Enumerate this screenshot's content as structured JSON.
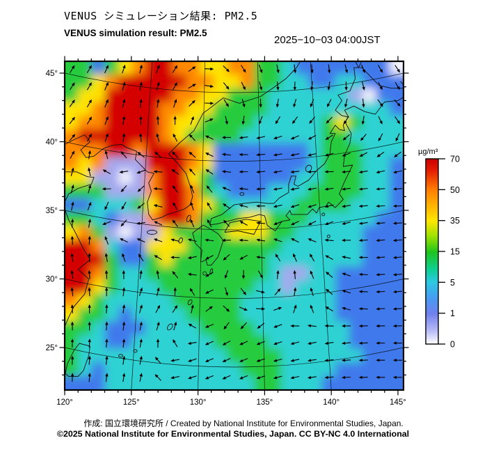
{
  "header": {
    "title_ja": "VENUS シミュレーション結果: PM2.5",
    "title_en": "VENUS simulation result: PM2.5",
    "timestamp": "2025−10−03 04:00JST"
  },
  "axes": {
    "lat_labels": [
      {
        "text": "45°",
        "value": 45
      },
      {
        "text": "40°",
        "value": 40
      },
      {
        "text": "35°",
        "value": 35
      },
      {
        "text": "30°",
        "value": 30
      },
      {
        "text": "25°",
        "value": 25
      }
    ],
    "lon_labels": [
      {
        "text": "120°",
        "value": 120
      },
      {
        "text": "125°",
        "value": 125
      },
      {
        "text": "130°",
        "value": 130
      },
      {
        "text": "135°",
        "value": 135
      },
      {
        "text": "140°",
        "value": 140
      },
      {
        "text": "145°",
        "value": 145
      }
    ]
  },
  "colorbar": {
    "unit": "µg/m³",
    "tick_values": [
      "70",
      "50",
      "35",
      "15",
      "5",
      "1",
      "0"
    ],
    "gradient": [
      [
        0,
        "#c80000"
      ],
      [
        0.06,
        "#e51a00"
      ],
      [
        0.17,
        "#ff8000"
      ],
      [
        0.335,
        "#ffe600"
      ],
      [
        0.42,
        "#9be100"
      ],
      [
        0.505,
        "#1ec41e"
      ],
      [
        0.6,
        "#0ecf96"
      ],
      [
        0.665,
        "#2cc9e2"
      ],
      [
        0.75,
        "#479df2"
      ],
      [
        0.835,
        "#6f80ee"
      ],
      [
        0.93,
        "#b9bcf6"
      ],
      [
        1,
        "#ffffff"
      ]
    ]
  },
  "map": {
    "heat_palette": {
      "R": "#d40000",
      "O": "#ff8a00",
      "Y": "#ffe400",
      "G": "#27cc3e",
      "C": "#2dd2d2",
      "B": "#4079ec",
      "P": "#a4a8ee",
      "W": "#f2f3fd"
    },
    "heat_rows": [
      "GGBGYORROOYYOOGGCBBBBBBBW",
      "GGYORRRRROOYYOGGCCBBCCBBB",
      "GYYRRRRROOYYGGGCCCCCCPWBB",
      "YYORRRROOYYGGGGCCCCCCCCCB",
      "YOORRRROYYGGGGCCCCCGYGCCC",
      "ORRRRRROYGGGGCCCCCCGGCCCC",
      "OOORRORRROYBBBBBBBCGGGCCC",
      "OYOPPPRRROYBBBBBBBCGGGCCB",
      "YYPPWPORRYGBBBBBBCCGGGCCB",
      "GGGPPPORROGCBBBCCCGGGGCCB",
      "BBCCCGYRROYGCCCCCGGGGCCCB",
      "GGCBPPORROGGGYYGGGCCCCCBB",
      "YOGPWPPYGGGGYYYGGCCCCCBBB",
      "RROCBBYYYGGGGGGGCCCCCCBBB",
      "RRRGBBGYGGGGGGGCCCCCCCBBB",
      "RROGCCGGGGGGGGGCPPCCBBBBB",
      "RRYGCCCGGGGGGGCCPCCCBBBBB",
      "OYGCCCCCGGGGGCCCCCCCBBBBB",
      "YGGCBCCCCGGGGCCCCCCCBBBBB",
      "GGCBBBCCCCGGGGCCCCCCCBBBB",
      "GCCBBCCCCCCGGGGCCCCCCBBBB",
      "GCCCCCCCCCCCGGGGCCCCCCBBB",
      "GCBCCCCCCCCCCGGGCCCCBBBBB",
      "BBBCCCCCCCCCCCGGCCCBBBBBB"
    ],
    "wind_field": {
      "lon_start": 120,
      "lon_step": 2,
      "lat_start": 46,
      "lat_step": -2,
      "angles": [
        [
          60,
          60,
          70,
          75,
          60,
          30,
          -40,
          -60,
          -75,
          -80,
          -75,
          -65,
          -55
        ],
        [
          55,
          60,
          70,
          80,
          65,
          20,
          -50,
          -70,
          -85,
          -95,
          -100,
          -80,
          -60
        ],
        [
          50,
          60,
          75,
          90,
          85,
          45,
          -60,
          -90,
          -110,
          -120,
          -130,
          -100,
          -40
        ],
        [
          45,
          60,
          80,
          100,
          120,
          150,
          170,
          180,
          190,
          200,
          210,
          220,
          235
        ],
        [
          60,
          110,
          180,
          200,
          150,
          130,
          175,
          185,
          190,
          185,
          180,
          190,
          195
        ],
        [
          80,
          60,
          250,
          230,
          120,
          100,
          150,
          180,
          190,
          195,
          190,
          185,
          180
        ],
        [
          90,
          80,
          240,
          180,
          130,
          110,
          130,
          160,
          200,
          210,
          200,
          190,
          185
        ],
        [
          100,
          90,
          110,
          140,
          190,
          200,
          215,
          185,
          135,
          110,
          160,
          180,
          185
        ],
        [
          100,
          95,
          90,
          70,
          110,
          180,
          255,
          290,
          75,
          100,
          140,
          175,
          185
        ],
        [
          95,
          90,
          85,
          70,
          50,
          80,
          320,
          350,
          20,
          90,
          150,
          175,
          185
        ],
        [
          90,
          88,
          85,
          80,
          75,
          200,
          210,
          205,
          200,
          195,
          190,
          185,
          180
        ],
        [
          88,
          85,
          82,
          78,
          190,
          200,
          205,
          200,
          195,
          190,
          185,
          182,
          180
        ]
      ]
    },
    "graticule": {
      "meridians": [
        125,
        130,
        135,
        140
      ],
      "parallels": [
        25,
        30,
        35,
        40,
        45
      ]
    },
    "coastlines": [
      [
        [
          141.0,
          41.5
        ],
        [
          141.5,
          40.6
        ],
        [
          141.4,
          39.9
        ],
        [
          141.0,
          39.0
        ],
        [
          140.9,
          38.2
        ],
        [
          141.6,
          38.3
        ],
        [
          141.0,
          37.1
        ],
        [
          140.6,
          36.2
        ],
        [
          140.9,
          35.8
        ],
        [
          140.3,
          35.2
        ],
        [
          139.8,
          35.6
        ],
        [
          139.6,
          35.3
        ],
        [
          139.1,
          35.2
        ],
        [
          138.9,
          34.8
        ],
        [
          138.6,
          35.1
        ],
        [
          138.2,
          34.7
        ],
        [
          137.0,
          34.7
        ],
        [
          136.9,
          35.0
        ],
        [
          136.6,
          34.6
        ],
        [
          136.9,
          34.3
        ],
        [
          136.3,
          34.2
        ],
        [
          135.8,
          33.5
        ],
        [
          135.2,
          33.9
        ],
        [
          135.0,
          34.6
        ],
        [
          134.6,
          34.7
        ],
        [
          133.9,
          34.5
        ],
        [
          133.0,
          34.4
        ],
        [
          132.2,
          34.2
        ],
        [
          131.4,
          34.0
        ],
        [
          130.9,
          33.95
        ],
        [
          131.0,
          34.4
        ],
        [
          131.8,
          34.7
        ],
        [
          132.7,
          35.4
        ],
        [
          133.4,
          35.5
        ],
        [
          134.4,
          35.6
        ],
        [
          135.2,
          35.5
        ],
        [
          135.7,
          35.5
        ],
        [
          136.1,
          35.9
        ],
        [
          136.8,
          36.3
        ],
        [
          136.8,
          36.9
        ],
        [
          137.0,
          37.5
        ],
        [
          137.35,
          37.5
        ],
        [
          137.2,
          36.9
        ],
        [
          137.5,
          36.75
        ],
        [
          138.3,
          37.2
        ],
        [
          138.9,
          37.9
        ],
        [
          139.5,
          38.4
        ],
        [
          139.9,
          39.1
        ],
        [
          140.0,
          40.0
        ],
        [
          140.3,
          40.6
        ],
        [
          139.9,
          40.6
        ],
        [
          140.3,
          41.2
        ],
        [
          140.6,
          40.9
        ],
        [
          141.0,
          40.8
        ],
        [
          140.9,
          41.2
        ],
        [
          141.0,
          41.5
        ]
      ],
      [
        [
          140.3,
          42.3
        ],
        [
          140.8,
          41.9
        ],
        [
          141.3,
          41.8
        ],
        [
          141.0,
          42.3
        ],
        [
          141.7,
          42.6
        ],
        [
          142.5,
          42.2
        ],
        [
          143.3,
          42.0
        ],
        [
          144.0,
          42.9
        ],
        [
          145.0,
          43.0
        ],
        [
          145.5,
          43.3
        ],
        [
          145.4,
          43.9
        ],
        [
          144.5,
          43.9
        ],
        [
          143.6,
          44.1
        ],
        [
          142.9,
          44.8
        ],
        [
          142.3,
          45.4
        ],
        [
          141.7,
          45.4
        ],
        [
          141.8,
          44.6
        ],
        [
          141.4,
          43.7
        ],
        [
          140.5,
          43.4
        ],
        [
          140.8,
          43.0
        ],
        [
          140.3,
          42.3
        ]
      ],
      [
        [
          130.4,
          33.93
        ],
        [
          131.0,
          33.6
        ],
        [
          131.5,
          33.3
        ],
        [
          131.9,
          32.8
        ],
        [
          131.5,
          31.6
        ],
        [
          131.0,
          31.0
        ],
        [
          130.7,
          31.0
        ],
        [
          130.6,
          31.4
        ],
        [
          130.3,
          31.25
        ],
        [
          130.2,
          31.3
        ],
        [
          130.3,
          32.1
        ],
        [
          129.8,
          32.6
        ],
        [
          129.6,
          33.35
        ],
        [
          130.4,
          33.93
        ]
      ],
      [
        [
          132.0,
          33.4
        ],
        [
          133.0,
          33.5
        ],
        [
          134.2,
          33.25
        ],
        [
          134.7,
          34.2
        ],
        [
          133.6,
          34.35
        ],
        [
          132.4,
          34.1
        ],
        [
          132.0,
          33.4
        ]
      ],
      [
        [
          124.3,
          39.8
        ],
        [
          124.6,
          39.6
        ],
        [
          125.4,
          39.3
        ],
        [
          125.3,
          38.7
        ],
        [
          126.2,
          37.8
        ],
        [
          126.7,
          37.7
        ],
        [
          126.3,
          37.0
        ],
        [
          126.5,
          36.4
        ],
        [
          126.2,
          35.6
        ],
        [
          126.3,
          34.7
        ],
        [
          126.6,
          34.3
        ],
        [
          127.3,
          34.5
        ],
        [
          127.7,
          34.7
        ],
        [
          128.4,
          34.9
        ],
        [
          129.0,
          35.1
        ],
        [
          129.4,
          35.4
        ],
        [
          129.6,
          36.0
        ],
        [
          129.4,
          36.8
        ],
        [
          129.1,
          37.7
        ],
        [
          128.4,
          38.5
        ],
        [
          127.8,
          39.1
        ],
        [
          128.6,
          39.9
        ],
        [
          129.7,
          40.8
        ],
        [
          130.4,
          42.1
        ],
        [
          130.7,
          42.3
        ],
        [
          131.9,
          43.2
        ],
        [
          133.1,
          42.8
        ],
        [
          134.7,
          43.3
        ],
        [
          135.6,
          43.9
        ],
        [
          136.6,
          44.6
        ],
        [
          137.4,
          45.4
        ],
        [
          137.7,
          45.9
        ]
      ],
      [
        [
          124.3,
          39.8
        ],
        [
          123.6,
          39.75
        ],
        [
          122.9,
          39.5
        ],
        [
          122.2,
          38.95
        ],
        [
          121.6,
          38.85
        ],
        [
          121.2,
          39.4
        ],
        [
          121.9,
          40.0
        ],
        [
          121.5,
          40.5
        ],
        [
          120.8,
          40.2
        ],
        [
          120.0,
          39.8
        ]
      ],
      [
        [
          120.0,
          37.8
        ],
        [
          120.9,
          37.8
        ],
        [
          121.7,
          37.45
        ],
        [
          122.2,
          37.4
        ],
        [
          122.0,
          36.9
        ],
        [
          121.0,
          36.6
        ],
        [
          120.3,
          36.2
        ],
        [
          119.9,
          35.4
        ],
        [
          120.3,
          34.3
        ],
        [
          120.9,
          33.2
        ],
        [
          121.4,
          32.2
        ],
        [
          121.9,
          31.4
        ],
        [
          121.0,
          30.7
        ],
        [
          121.8,
          30.0
        ],
        [
          121.5,
          28.9
        ],
        [
          120.7,
          28.0
        ],
        [
          120.3,
          27.2
        ],
        [
          119.95,
          26.4
        ]
      ],
      [
        [
          120.05,
          23.1
        ],
        [
          120.2,
          23.8
        ],
        [
          120.7,
          24.8
        ],
        [
          121.1,
          25.3
        ],
        [
          121.9,
          25.1
        ],
        [
          121.8,
          24.4
        ],
        [
          121.4,
          23.3
        ],
        [
          121.0,
          22.9
        ],
        [
          120.3,
          22.9
        ],
        [
          120.05,
          23.1
        ]
      ],
      [
        [
          141.8,
          45.88
        ],
        [
          142.05,
          45.4
        ],
        [
          142.3,
          45.88
        ]
      ],
      [
        [
          145.2,
          44.4
        ],
        [
          145.6,
          43.9
        ],
        [
          145.9,
          44.15
        ]
      ]
    ],
    "islands": [
      [
        126.55,
        33.4,
        7,
        3,
        0
      ],
      [
        129.3,
        34.4,
        2.5,
        5,
        20
      ],
      [
        138.3,
        38.05,
        4,
        5,
        30
      ],
      [
        133.3,
        36.2,
        3,
        2,
        0
      ],
      [
        129.4,
        28.3,
        2.5,
        4,
        30
      ],
      [
        127.9,
        26.5,
        3,
        5,
        35
      ],
      [
        125.3,
        24.75,
        2.5,
        2,
        0
      ],
      [
        124.2,
        24.4,
        3,
        2,
        0
      ],
      [
        130.5,
        30.4,
        2.5,
        2.5,
        0
      ],
      [
        131.0,
        30.55,
        1.5,
        4,
        15
      ],
      [
        139.4,
        34.7,
        2,
        2,
        0
      ],
      [
        139.8,
        33.1,
        2,
        2,
        0
      ],
      [
        128.7,
        32.8,
        2.5,
        4,
        25
      ]
    ]
  },
  "footer": {
    "credit": "作成: 国立環境研究所 / Created by National Institute for Environmental Studies, Japan.",
    "license": "©2025 National Institute for Environmental Studies, Japan. CC BY-NC 4.0 International"
  }
}
